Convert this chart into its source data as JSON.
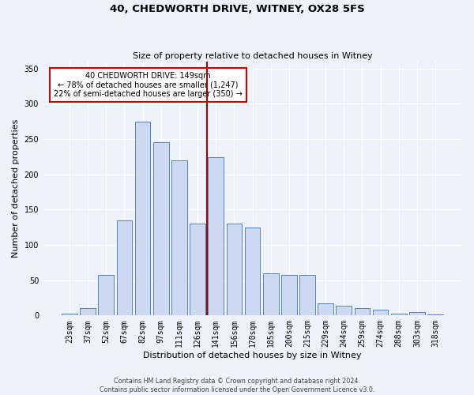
{
  "title_line1": "40, CHEDWORTH DRIVE, WITNEY, OX28 5FS",
  "title_line2": "Size of property relative to detached houses in Witney",
  "xlabel": "Distribution of detached houses by size in Witney",
  "ylabel": "Number of detached properties",
  "categories": [
    "23sqm",
    "37sqm",
    "52sqm",
    "67sqm",
    "82sqm",
    "97sqm",
    "111sqm",
    "126sqm",
    "141sqm",
    "156sqm",
    "170sqm",
    "185sqm",
    "200sqm",
    "215sqm",
    "229sqm",
    "244sqm",
    "259sqm",
    "274sqm",
    "288sqm",
    "303sqm",
    "318sqm"
  ],
  "values": [
    3,
    10,
    58,
    135,
    275,
    245,
    220,
    130,
    224,
    130,
    125,
    60,
    58,
    57,
    17,
    14,
    10,
    8,
    3,
    5,
    2
  ],
  "bar_color": "#ccd9f0",
  "bar_edge_color": "#5580bb",
  "vline_x_index": 8,
  "vline_color": "#aa0000",
  "annotation_text": "40 CHEDWORTH DRIVE: 149sqm\n← 78% of detached houses are smaller (1,247)\n22% of semi-detached houses are larger (350) →",
  "annotation_box_color": "#ffffff",
  "annotation_box_edge_color": "#cc0000",
  "ylim_max": 360,
  "yticks": [
    0,
    50,
    100,
    150,
    200,
    250,
    300,
    350
  ],
  "footer_line1": "Contains HM Land Registry data © Crown copyright and database right 2024.",
  "footer_line2": "Contains public sector information licensed under the Open Government Licence v3.0.",
  "bg_color": "#eef2fc",
  "plot_bg_color": "#eef2fc",
  "grid_color": "#ffffff",
  "title1_fontsize": 9.5,
  "title2_fontsize": 8.0,
  "xlabel_fontsize": 8.0,
  "ylabel_fontsize": 8.0,
  "tick_fontsize": 7.0,
  "annot_fontsize": 7.0,
  "footer_fontsize": 5.8
}
